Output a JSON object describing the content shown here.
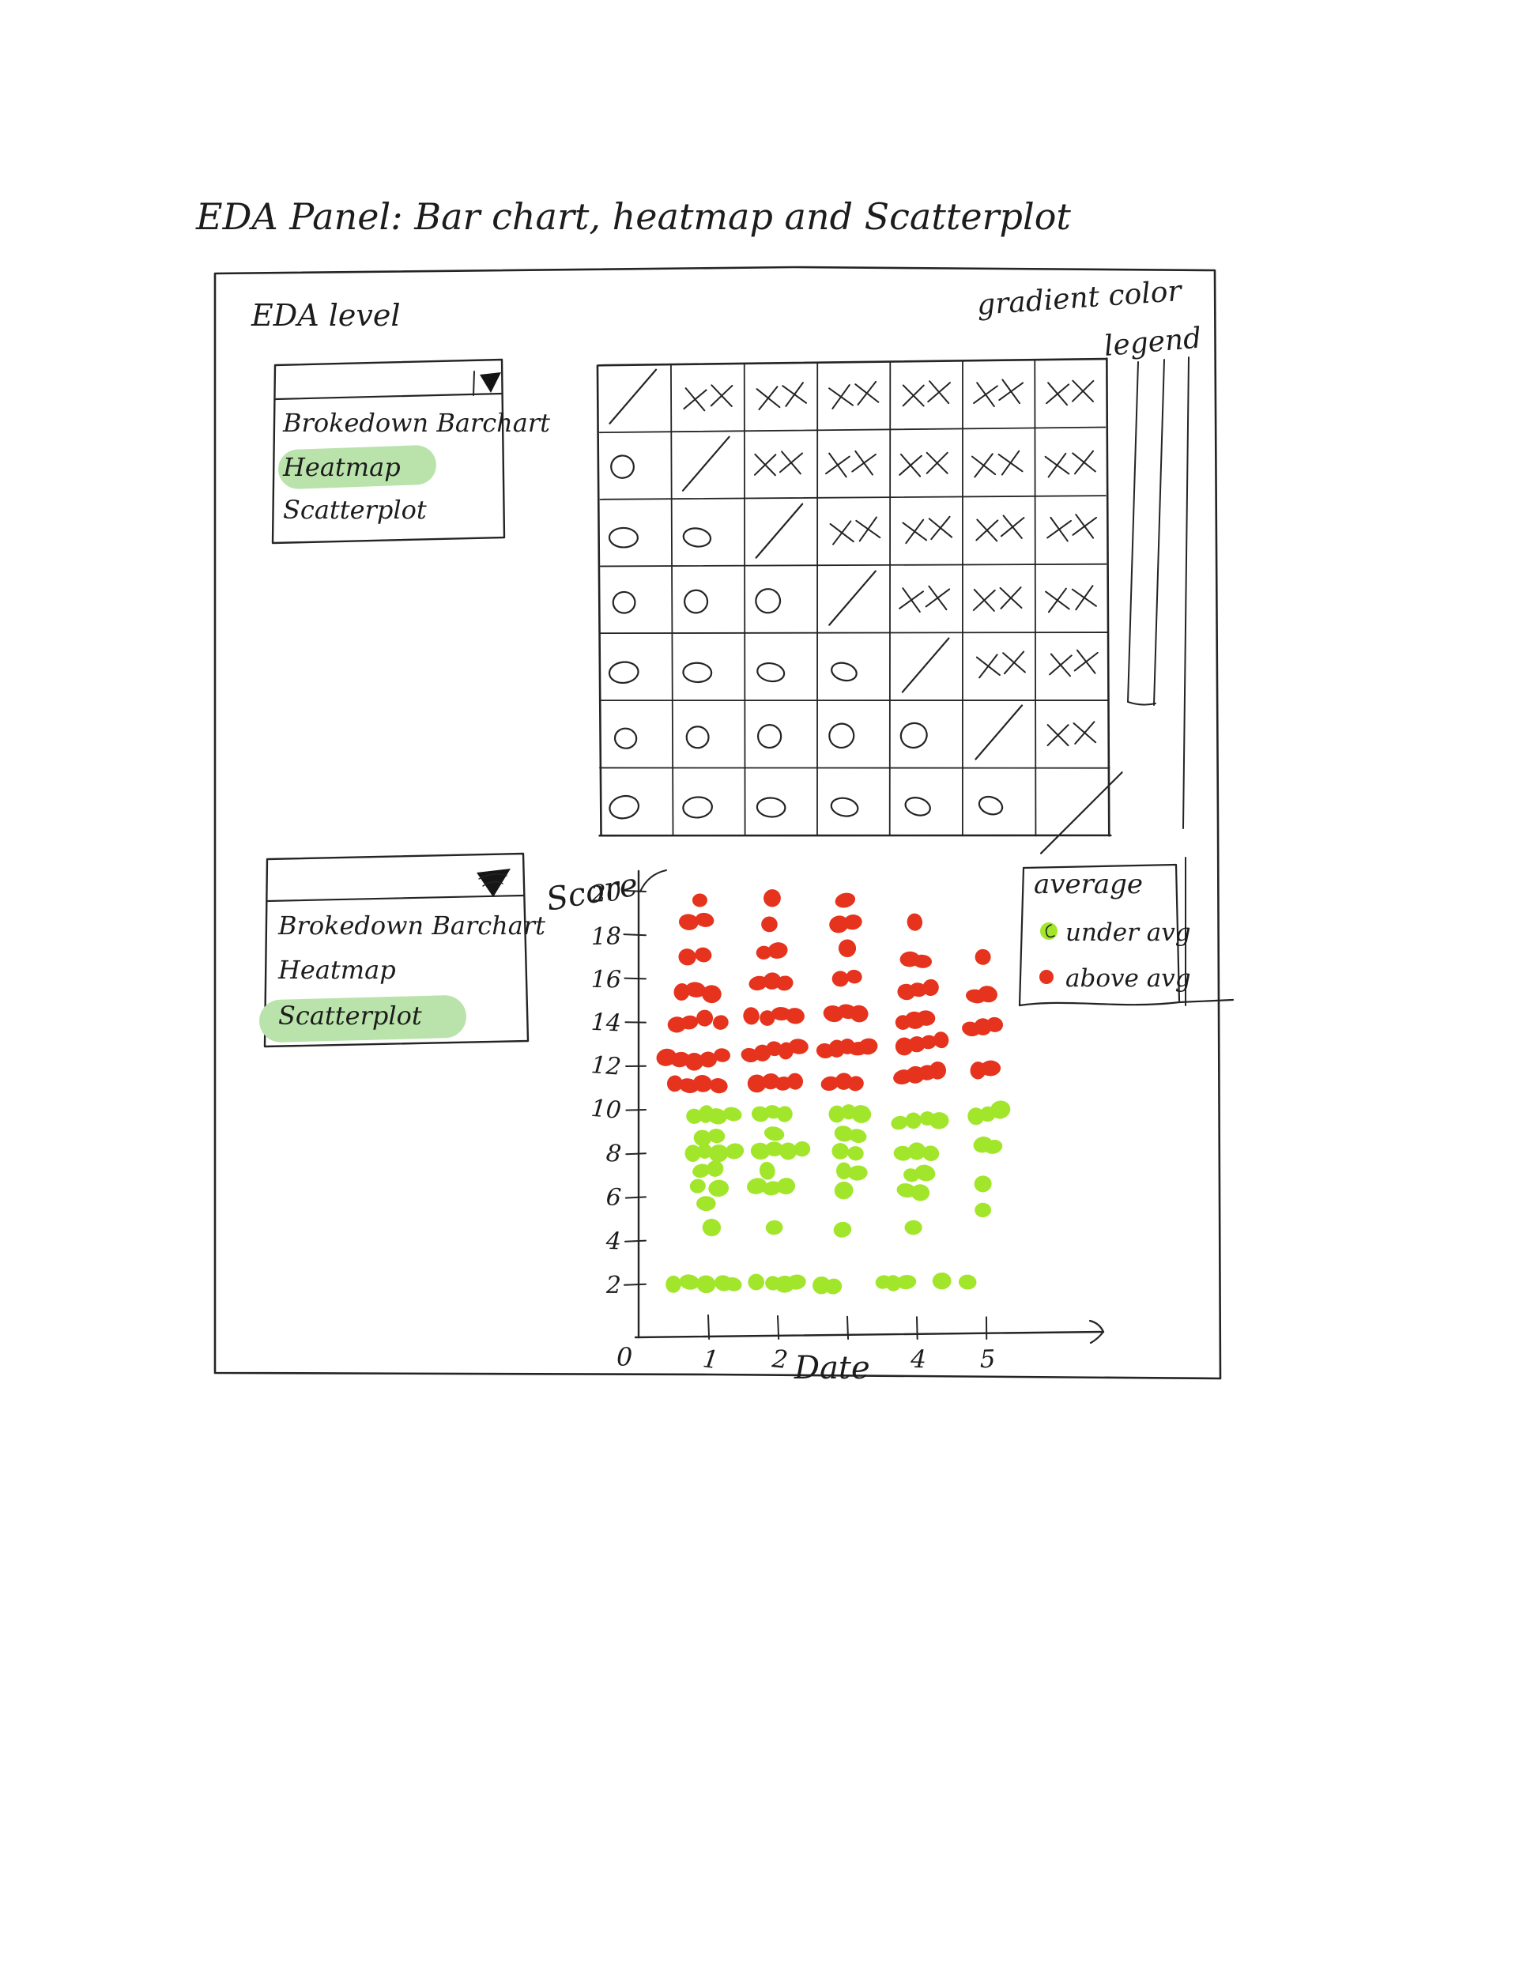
{
  "title": "EDA Panel: Bar chart, heatmap and Scatterplot",
  "panel": {
    "section_label": "EDA level",
    "gradient_note1": "gradient color",
    "gradient_note2": "legend"
  },
  "dropdown1": {
    "options": [
      "Brokedown Barchart",
      "Heatmap",
      "Scatterplot"
    ],
    "selected": "Heatmap",
    "icon": "dropdown-arrow"
  },
  "dropdown2": {
    "options": [
      "Brokedown Barchart",
      "Heatmap",
      "Scatterplot"
    ],
    "selected": "Scatterplot",
    "icon": "dropdown-arrow"
  },
  "heatmap": {
    "rows": 7,
    "cols": 7,
    "matrix": [
      [
        "/",
        "X",
        "X",
        "X",
        "X",
        "X",
        "X"
      ],
      [
        "O",
        "/",
        "X",
        "X",
        "X",
        "X",
        "X"
      ],
      [
        "O",
        "O",
        "/",
        "X",
        "X",
        "X",
        "X"
      ],
      [
        "O",
        "O",
        "O",
        "/",
        "X",
        "X",
        "X"
      ],
      [
        "O",
        "O",
        "O",
        "O",
        "/",
        "X",
        "X"
      ],
      [
        "O",
        "O",
        "O",
        "O",
        "O",
        "/",
        "X"
      ],
      [
        "O",
        "O",
        "O",
        "O",
        "O",
        "O",
        "/"
      ]
    ]
  },
  "colors": {
    "above_avg": "#e6331d",
    "under_avg": "#a2e62b",
    "highlight": "#b9e3ab",
    "ink": "#242424"
  },
  "chart_data": {
    "type": "scatter",
    "xlabel": "Date",
    "ylabel": "Score",
    "origin_label": "0",
    "xlim": [
      0,
      6.5
    ],
    "ylim": [
      0,
      21
    ],
    "xticks": [
      1,
      2,
      3,
      4,
      5
    ],
    "xtick_labels": [
      "1",
      "2",
      "",
      "4",
      "5"
    ],
    "yticks": [
      2,
      4,
      6,
      8,
      10,
      12,
      14,
      16,
      18,
      20
    ],
    "grid": false,
    "legend": {
      "title": "average",
      "position": "top-right",
      "entries": [
        {
          "label": "under avg",
          "color": "#a2e62b"
        },
        {
          "label": "above avg",
          "color": "#e6331d"
        }
      ]
    },
    "series": [
      {
        "name": "above avg",
        "color": "#e6331d",
        "points": [
          [
            0.88,
            19.6
          ],
          [
            0.72,
            18.6
          ],
          [
            0.95,
            18.7
          ],
          [
            0.7,
            17.0
          ],
          [
            0.93,
            17.1
          ],
          [
            0.62,
            15.4
          ],
          [
            0.82,
            15.5
          ],
          [
            1.05,
            15.3
          ],
          [
            0.55,
            13.9
          ],
          [
            0.73,
            14.0
          ],
          [
            0.95,
            14.2
          ],
          [
            1.18,
            14.0
          ],
          [
            0.4,
            12.4
          ],
          [
            0.6,
            12.3
          ],
          [
            0.8,
            12.2
          ],
          [
            1.0,
            12.3
          ],
          [
            1.2,
            12.5
          ],
          [
            0.52,
            11.2
          ],
          [
            0.72,
            11.1
          ],
          [
            0.92,
            11.2
          ],
          [
            1.15,
            11.1
          ],
          [
            1.92,
            19.7
          ],
          [
            1.88,
            18.5
          ],
          [
            1.8,
            17.2
          ],
          [
            2.0,
            17.3
          ],
          [
            1.72,
            15.8
          ],
          [
            1.92,
            15.9
          ],
          [
            2.1,
            15.8
          ],
          [
            1.62,
            14.3
          ],
          [
            1.85,
            14.2
          ],
          [
            2.05,
            14.4
          ],
          [
            2.25,
            14.3
          ],
          [
            1.6,
            12.5
          ],
          [
            1.78,
            12.6
          ],
          [
            1.95,
            12.8
          ],
          [
            2.12,
            12.7
          ],
          [
            2.3,
            12.9
          ],
          [
            1.7,
            11.2
          ],
          [
            1.9,
            11.3
          ],
          [
            2.08,
            11.2
          ],
          [
            2.25,
            11.3
          ],
          [
            2.97,
            19.6
          ],
          [
            2.88,
            18.5
          ],
          [
            3.08,
            18.6
          ],
          [
            3.0,
            17.4
          ],
          [
            2.9,
            16.0
          ],
          [
            3.1,
            16.1
          ],
          [
            2.8,
            14.4
          ],
          [
            3.0,
            14.5
          ],
          [
            3.17,
            14.4
          ],
          [
            2.68,
            12.7
          ],
          [
            2.85,
            12.8
          ],
          [
            3.0,
            12.9
          ],
          [
            3.16,
            12.8
          ],
          [
            3.3,
            12.9
          ],
          [
            2.75,
            11.2
          ],
          [
            2.95,
            11.3
          ],
          [
            3.12,
            11.2
          ],
          [
            3.97,
            18.6
          ],
          [
            3.9,
            16.9
          ],
          [
            4.08,
            16.8
          ],
          [
            3.85,
            15.4
          ],
          [
            4.02,
            15.5
          ],
          [
            4.2,
            15.6
          ],
          [
            3.8,
            14.0
          ],
          [
            3.97,
            14.1
          ],
          [
            4.13,
            14.2
          ],
          [
            3.82,
            12.9
          ],
          [
            4.0,
            13.0
          ],
          [
            4.17,
            13.1
          ],
          [
            4.35,
            13.2
          ],
          [
            3.8,
            11.5
          ],
          [
            3.98,
            11.6
          ],
          [
            4.15,
            11.7
          ],
          [
            4.3,
            11.8
          ],
          [
            4.95,
            17.0
          ],
          [
            4.85,
            15.2
          ],
          [
            5.02,
            15.3
          ],
          [
            4.78,
            13.7
          ],
          [
            4.95,
            13.8
          ],
          [
            5.12,
            13.9
          ],
          [
            4.88,
            11.8
          ],
          [
            5.06,
            11.9
          ]
        ]
      },
      {
        "name": "under avg",
        "color": "#a2e62b",
        "points": [
          [
            0.8,
            9.7
          ],
          [
            0.97,
            9.8
          ],
          [
            1.13,
            9.7
          ],
          [
            1.35,
            9.8
          ],
          [
            0.92,
            8.7
          ],
          [
            1.12,
            8.8
          ],
          [
            0.78,
            8.0
          ],
          [
            0.95,
            8.1
          ],
          [
            1.15,
            8.0
          ],
          [
            1.38,
            8.1
          ],
          [
            0.9,
            7.2
          ],
          [
            1.1,
            7.3
          ],
          [
            0.85,
            6.5
          ],
          [
            1.15,
            6.4
          ],
          [
            0.97,
            5.7
          ],
          [
            1.05,
            4.6
          ],
          [
            1.75,
            9.8
          ],
          [
            1.93,
            9.9
          ],
          [
            2.1,
            9.8
          ],
          [
            1.95,
            8.9
          ],
          [
            1.75,
            8.1
          ],
          [
            1.95,
            8.2
          ],
          [
            2.15,
            8.1
          ],
          [
            2.35,
            8.2
          ],
          [
            1.85,
            7.2
          ],
          [
            1.7,
            6.5
          ],
          [
            1.92,
            6.4
          ],
          [
            2.12,
            6.5
          ],
          [
            1.95,
            4.6
          ],
          [
            2.85,
            9.8
          ],
          [
            3.02,
            9.9
          ],
          [
            3.2,
            9.8
          ],
          [
            2.95,
            8.9
          ],
          [
            3.15,
            8.8
          ],
          [
            2.9,
            8.1
          ],
          [
            3.12,
            8.0
          ],
          [
            2.95,
            7.2
          ],
          [
            3.15,
            7.1
          ],
          [
            2.95,
            6.3
          ],
          [
            2.93,
            4.5
          ],
          [
            3.75,
            9.4
          ],
          [
            3.95,
            9.5
          ],
          [
            4.15,
            9.6
          ],
          [
            4.32,
            9.5
          ],
          [
            3.8,
            8.0
          ],
          [
            4.0,
            8.1
          ],
          [
            4.2,
            8.0
          ],
          [
            3.92,
            7.0
          ],
          [
            4.12,
            7.1
          ],
          [
            3.85,
            6.3
          ],
          [
            4.05,
            6.2
          ],
          [
            3.95,
            4.6
          ],
          [
            4.85,
            9.7
          ],
          [
            5.02,
            9.8
          ],
          [
            5.2,
            10.0
          ],
          [
            4.95,
            8.4
          ],
          [
            5.1,
            8.3
          ],
          [
            4.95,
            6.6
          ],
          [
            4.95,
            5.4
          ],
          [
            0.5,
            2.0
          ],
          [
            0.73,
            2.1
          ],
          [
            0.97,
            2.0
          ],
          [
            1.22,
            2.05
          ],
          [
            1.36,
            2.0
          ],
          [
            1.69,
            2.1
          ],
          [
            1.93,
            2.05
          ],
          [
            2.1,
            2.0
          ],
          [
            2.27,
            2.1
          ],
          [
            2.63,
            1.95
          ],
          [
            2.8,
            1.9
          ],
          [
            3.52,
            2.1
          ],
          [
            3.66,
            2.05
          ],
          [
            3.85,
            2.1
          ],
          [
            4.36,
            2.15
          ],
          [
            4.73,
            2.1
          ]
        ]
      }
    ]
  }
}
